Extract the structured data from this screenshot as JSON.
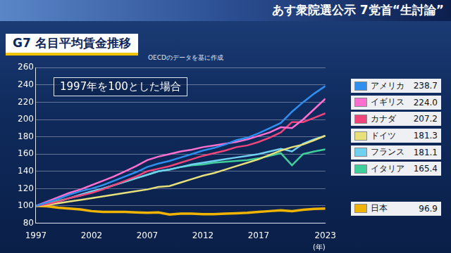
{
  "header": {
    "text": "あす衆院選公示 7党首“生討論”"
  },
  "chart_data": {
    "type": "line",
    "title": "G7 名目平均賃金推移",
    "subtitle": "OECDのデータを基に作成",
    "annotation": "1997年を100とした場合",
    "xlabel": "(年)",
    "x": [
      1997,
      1998,
      1999,
      2000,
      2001,
      2002,
      2003,
      2004,
      2005,
      2006,
      2007,
      2008,
      2009,
      2010,
      2011,
      2012,
      2013,
      2014,
      2015,
      2016,
      2017,
      2018,
      2019,
      2020,
      2021,
      2022,
      2023
    ],
    "xlim": [
      1997,
      2023
    ],
    "xticks": [
      1997,
      2002,
      2007,
      2012,
      2017,
      2023
    ],
    "ylim": [
      80,
      260
    ],
    "yticks": [
      80,
      100,
      120,
      140,
      160,
      180,
      200,
      220,
      240,
      260
    ],
    "grid": true,
    "legend": "right",
    "series": [
      {
        "name": "アメリカ",
        "color": "#2f8ff0",
        "values": [
          100,
          104,
          108,
          113,
          117,
          120,
          124,
          129,
          134,
          139,
          145,
          149,
          152,
          156,
          160,
          164,
          167,
          171,
          176,
          179,
          184,
          190,
          196,
          209,
          220,
          230,
          238.7
        ],
        "value_labels": [
          null,
          null,
          null,
          null,
          null,
          null,
          null,
          null,
          null,
          null,
          null,
          null,
          null,
          null,
          null,
          null,
          null,
          null,
          null,
          null,
          null,
          null,
          null,
          null,
          null,
          null,
          "238.7"
        ]
      },
      {
        "name": "イギリス",
        "color": "#ff6fd0",
        "values": [
          100,
          105,
          110,
          115,
          119,
          124,
          129,
          134,
          140,
          146,
          153,
          157,
          160,
          163,
          165,
          168,
          170,
          172,
          174,
          177,
          181,
          185,
          191,
          190,
          200,
          212,
          224.0
        ],
        "value_labels": [
          null,
          null,
          null,
          null,
          null,
          null,
          null,
          null,
          null,
          null,
          null,
          null,
          null,
          null,
          null,
          null,
          null,
          null,
          null,
          null,
          null,
          null,
          null,
          null,
          null,
          null,
          "224.0"
        ]
      },
      {
        "name": "カナダ",
        "color": "#f0457a",
        "values": [
          100,
          102,
          105,
          109,
          112,
          115,
          119,
          124,
          129,
          134,
          140,
          143,
          146,
          150,
          154,
          158,
          161,
          164,
          168,
          170,
          174,
          179,
          185,
          197,
          197,
          202,
          207.2
        ],
        "value_labels": [
          null,
          null,
          null,
          null,
          null,
          null,
          null,
          null,
          null,
          null,
          null,
          null,
          null,
          null,
          null,
          null,
          null,
          null,
          null,
          null,
          null,
          null,
          null,
          null,
          null,
          null,
          "207.2"
        ]
      },
      {
        "name": "ドイツ",
        "color": "#e8e07a",
        "values": [
          100,
          101,
          103,
          105,
          107,
          109,
          111,
          113,
          115,
          117,
          119,
          122,
          123,
          127,
          131,
          135,
          138,
          142,
          146,
          150,
          154,
          159,
          164,
          168,
          171,
          176,
          181.3
        ],
        "value_labels": [
          null,
          null,
          null,
          null,
          null,
          null,
          null,
          null,
          null,
          null,
          null,
          null,
          null,
          null,
          null,
          null,
          null,
          null,
          null,
          null,
          null,
          null,
          null,
          null,
          null,
          null,
          "181.3"
        ]
      },
      {
        "name": "フランス",
        "color": "#6fd0f0",
        "values": [
          100,
          102,
          105,
          109,
          113,
          117,
          120,
          124,
          128,
          132,
          136,
          140,
          142,
          145,
          148,
          150,
          152,
          154,
          156,
          158,
          160,
          163,
          166,
          163,
          172,
          177,
          181.1
        ],
        "value_labels": [
          null,
          null,
          null,
          null,
          null,
          null,
          null,
          null,
          null,
          null,
          null,
          null,
          null,
          null,
          null,
          null,
          null,
          null,
          null,
          null,
          null,
          null,
          null,
          null,
          null,
          null,
          "181.1"
        ]
      },
      {
        "name": "イタリア",
        "color": "#3fcf9a",
        "values": [
          100,
          103,
          106,
          109,
          112,
          116,
          120,
          124,
          128,
          132,
          136,
          140,
          142,
          145,
          147,
          148,
          150,
          151,
          152,
          153,
          155,
          158,
          161,
          147,
          160,
          163,
          165.4
        ],
        "value_labels": [
          null,
          null,
          null,
          null,
          null,
          null,
          null,
          null,
          null,
          null,
          null,
          null,
          null,
          null,
          null,
          null,
          null,
          null,
          null,
          null,
          null,
          null,
          null,
          null,
          null,
          null,
          "165.4"
        ]
      },
      {
        "name": "日本",
        "color": "#f0b400",
        "values": [
          100,
          99.5,
          98,
          97,
          96,
          94,
          93,
          93,
          93,
          92.5,
          92,
          92.5,
          90,
          91,
          91,
          90.5,
          90.5,
          91,
          91.5,
          92,
          93,
          94,
          95,
          94,
          95.5,
          96.5,
          96.9
        ],
        "value_labels": [
          null,
          null,
          null,
          null,
          null,
          null,
          null,
          null,
          null,
          null,
          null,
          null,
          null,
          null,
          null,
          null,
          null,
          null,
          null,
          null,
          null,
          null,
          null,
          null,
          null,
          null,
          "96.9"
        ]
      }
    ]
  }
}
